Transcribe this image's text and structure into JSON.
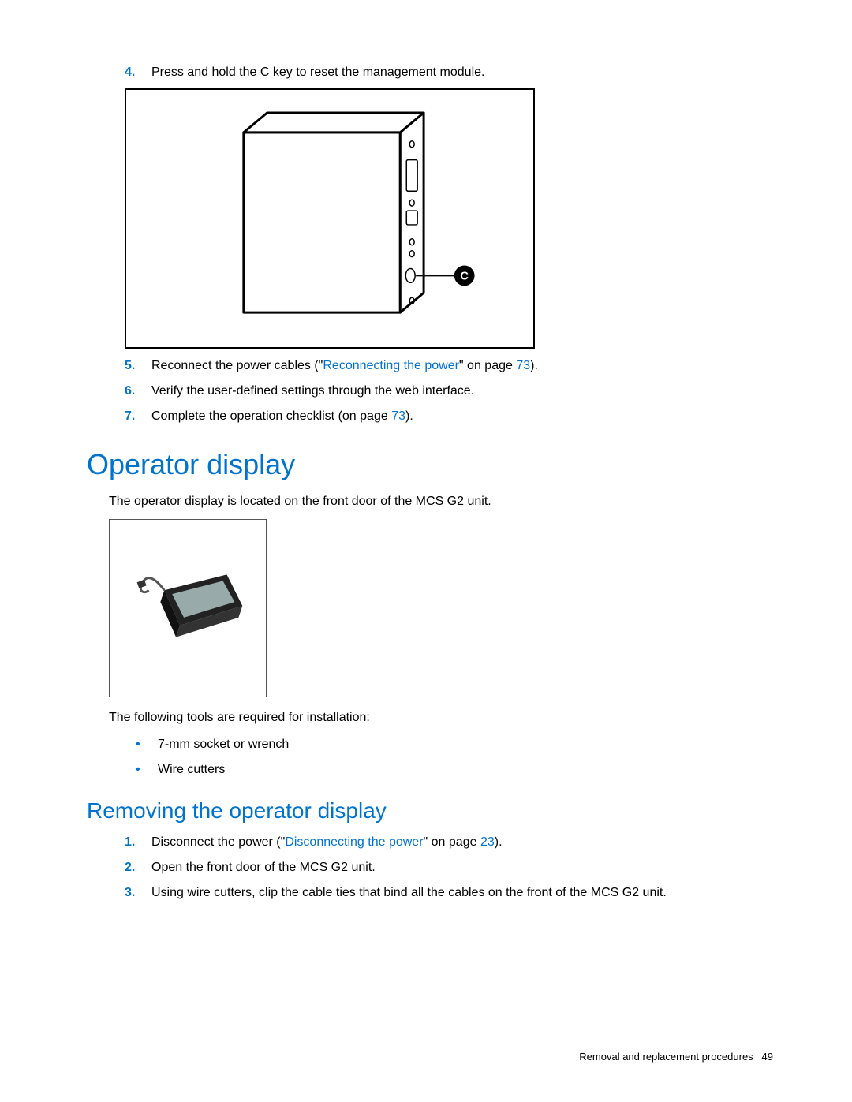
{
  "colors": {
    "link_blue": "#0073cf",
    "text_black": "#000000",
    "bg_white": "#ffffff"
  },
  "top_steps": [
    {
      "num": "4.",
      "parts": [
        {
          "t": "Press and hold the C key to reset the management module."
        }
      ]
    },
    {
      "num": "5.",
      "parts": [
        {
          "t": "Reconnect the power cables (\""
        },
        {
          "t": "Reconnecting the power",
          "link": true
        },
        {
          "t": "\" on page "
        },
        {
          "t": "73",
          "link": true
        },
        {
          "t": ")."
        }
      ]
    },
    {
      "num": "6.",
      "parts": [
        {
          "t": "Verify the user-defined settings through the web interface."
        }
      ]
    },
    {
      "num": "7.",
      "parts": [
        {
          "t": "Complete the operation checklist (on page "
        },
        {
          "t": "73",
          "link": true
        },
        {
          "t": ")."
        }
      ]
    }
  ],
  "heading1": "Operator display",
  "para1": "The operator display is located on the front door of the MCS G2 unit.",
  "para2": "The following tools are required for installation:",
  "bullets": [
    "7-mm socket or wrench",
    "Wire cutters"
  ],
  "heading2": "Removing the operator display",
  "bottom_steps": [
    {
      "num": "1.",
      "parts": [
        {
          "t": "Disconnect the power (\""
        },
        {
          "t": "Disconnecting the power",
          "link": true
        },
        {
          "t": "\" on page "
        },
        {
          "t": "23",
          "link": true
        },
        {
          "t": ")."
        }
      ]
    },
    {
      "num": "2.",
      "parts": [
        {
          "t": "Open the front door of the MCS G2 unit."
        }
      ]
    },
    {
      "num": "3.",
      "parts": [
        {
          "t": "Using wire cutters, clip the cable ties that bind all the cables on the front of the MCS G2 unit."
        }
      ]
    }
  ],
  "footer_text": "Removal and replacement procedures",
  "footer_page": "49",
  "diagram_label": "C"
}
